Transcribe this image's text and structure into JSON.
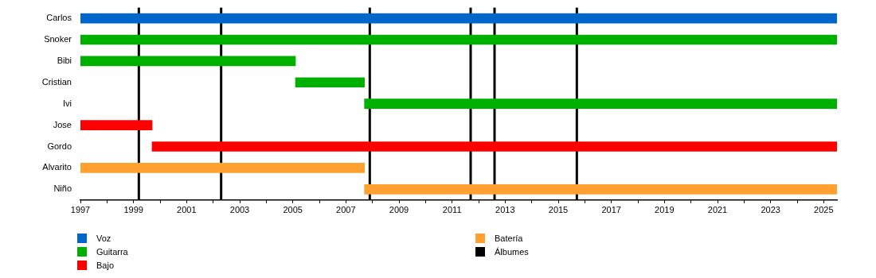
{
  "chart_data": {
    "type": "bar",
    "orientation": "horizontal",
    "categories": [
      "Carlos",
      "Snoker",
      "Bibi",
      "Cristian",
      "Ivi",
      "Jose",
      "Gordo",
      "Alvarito",
      "Niño"
    ],
    "series": [
      {
        "name": "Voz",
        "color": "#0066cc",
        "base": [
          1997,
          null,
          null,
          null,
          null,
          null,
          null,
          null,
          null
        ],
        "values": [
          28.5,
          null,
          null,
          null,
          null,
          null,
          null,
          null,
          null
        ]
      },
      {
        "name": "Guitarra",
        "color": "#00b000",
        "base": [
          null,
          1997,
          1997,
          2005.1,
          2007.7,
          null,
          null,
          null,
          null
        ],
        "values": [
          null,
          28.5,
          8.1,
          2.6,
          17.8,
          null,
          null,
          null,
          null
        ]
      },
      {
        "name": "Bajo",
        "color": "#ff0000",
        "base": [
          null,
          null,
          null,
          null,
          null,
          1997,
          1999.7,
          null,
          null
        ],
        "values": [
          null,
          null,
          null,
          null,
          null,
          2.7,
          25.8,
          null,
          null
        ]
      },
      {
        "name": "Batería",
        "color": "#ffa030",
        "base": [
          null,
          null,
          null,
          null,
          null,
          null,
          null,
          1997,
          2007.7
        ],
        "values": [
          null,
          null,
          null,
          null,
          null,
          null,
          null,
          10.7,
          17.8
        ]
      }
    ],
    "ref_lines": [
      {
        "axis": "x",
        "value": 1999.2,
        "label": "Álbumes",
        "color": "#000000"
      },
      {
        "axis": "x",
        "value": 2002.3,
        "color": "#000000"
      },
      {
        "axis": "x",
        "value": 2007.9,
        "color": "#000000"
      },
      {
        "axis": "x",
        "value": 2011.7,
        "color": "#000000"
      },
      {
        "axis": "x",
        "value": 2012.6,
        "color": "#000000"
      },
      {
        "axis": "x",
        "value": 2015.7,
        "color": "#000000"
      }
    ],
    "xlim": [
      1997,
      2025.5
    ],
    "xticks": [
      1997,
      {
        "value": 1998,
        "label": null
      },
      1999,
      {
        "value": 2000,
        "label": null
      },
      2001,
      {
        "value": 2002,
        "label": null
      },
      2003,
      {
        "value": 2004,
        "label": null
      },
      2005,
      {
        "value": 2006,
        "label": null
      },
      2007,
      {
        "value": 2008,
        "label": null
      },
      2009,
      {
        "value": 2010,
        "label": null
      },
      2011,
      {
        "value": 2012,
        "label": null
      },
      2013,
      {
        "value": 2014,
        "label": null
      },
      2015,
      {
        "value": 2016,
        "label": null
      },
      2017,
      {
        "value": 2018,
        "label": null
      },
      2019,
      {
        "value": 2020,
        "label": null
      },
      2021,
      {
        "value": 2022,
        "label": null
      },
      2023,
      {
        "value": 2024,
        "label": null
      },
      2025
    ],
    "grid": false,
    "legend": "bottom"
  }
}
